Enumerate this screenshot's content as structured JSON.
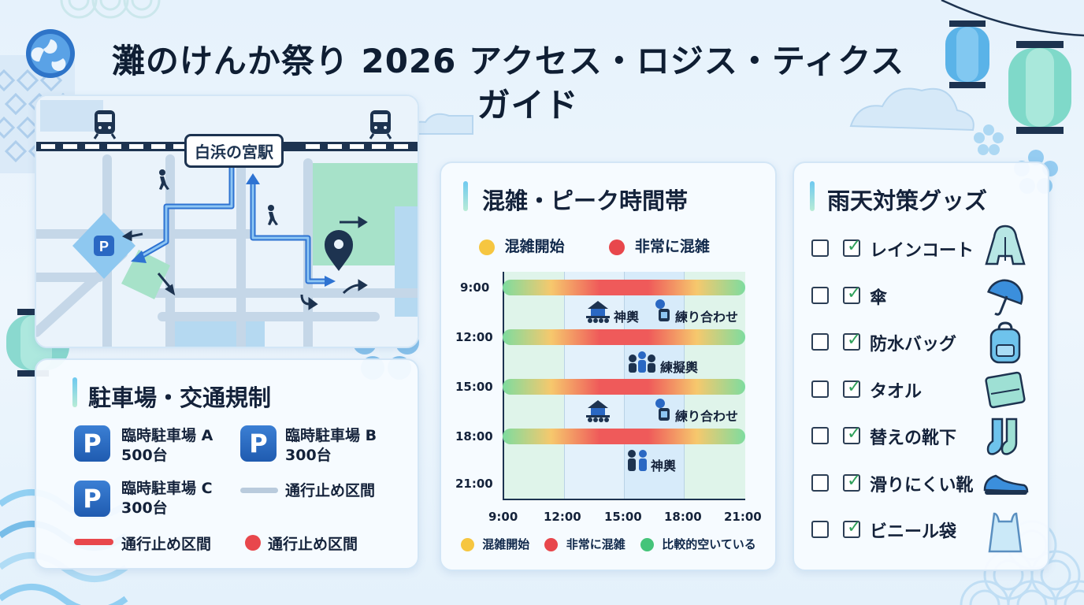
{
  "title": {
    "line1": "灘のけんか祭り 2026 アクセス・ロジス・ティクス",
    "line2": "ガイド"
  },
  "colors": {
    "accent_blue": "#1f5bb0",
    "congestion_start": "#f6c640",
    "very_crowded": "#e8474c",
    "relatively_empty": "#45c47a",
    "road_closure": "#e8474c"
  },
  "map": {
    "station_label": "白浜の宮駅",
    "icons": [
      "train-icon",
      "parking-icon",
      "walking-person-icon",
      "location-pin-icon"
    ]
  },
  "parking": {
    "title": "駐車場・交通規制",
    "lots": [
      {
        "icon": "P",
        "name": "臨時駐車場 A",
        "capacity": "500台"
      },
      {
        "icon": "P",
        "name": "臨時駐車場 B",
        "capacity": "300台"
      },
      {
        "icon": "P",
        "name": "臨時駐車場 C",
        "capacity": "300台"
      }
    ],
    "legend": [
      {
        "label": "通行止め区間",
        "style": "gray-line"
      },
      {
        "label": "通行止め区間",
        "style": "red-line"
      },
      {
        "label": "通行止め区間",
        "style": "red-dot"
      }
    ]
  },
  "congestion": {
    "title": "混雑・ピーク時間帯",
    "top_legend": [
      {
        "label": "混雑開始",
        "color": "#f6c640"
      },
      {
        "label": "非常に混雑",
        "color": "#e8474c"
      }
    ],
    "bottom_legend": [
      {
        "label": "混雑開始",
        "color": "#f6c640"
      },
      {
        "label": "非常に混雑",
        "color": "#e8474c"
      },
      {
        "label": "比較的空いている",
        "color": "#45c47a"
      }
    ]
  },
  "chart_data": {
    "type": "other",
    "x_ticks": [
      "9:00",
      "12:00",
      "15:00",
      "18:00",
      "21:00"
    ],
    "y_ticks": [
      "9:00",
      "12:00",
      "15:00",
      "18:00",
      "21:00"
    ],
    "bands": [
      {
        "row": "9:00",
        "gradient": [
          "relatively_empty",
          "congestion_start",
          "very_crowded",
          "very_crowded",
          "congestion_start",
          "relatively_empty"
        ]
      },
      {
        "row": "12:00",
        "gradient": [
          "relatively_empty",
          "congestion_start",
          "very_crowded",
          "very_crowded",
          "congestion_start",
          "relatively_empty"
        ]
      },
      {
        "row": "15:00",
        "gradient": [
          "relatively_empty",
          "congestion_start",
          "very_crowded",
          "very_crowded",
          "congestion_start",
          "relatively_empty"
        ]
      },
      {
        "row": "18:00",
        "gradient": [
          "relatively_empty",
          "congestion_start",
          "very_crowded",
          "very_crowded",
          "congestion_start",
          "relatively_empty"
        ]
      }
    ],
    "events": [
      {
        "label": "神輿",
        "icon": "mikoshi-icon",
        "x": "12:00-15:00",
        "between": "9:00-12:00"
      },
      {
        "label": "練り合わせ",
        "icon": "banner-icon",
        "x": "15:00-18:00",
        "between": "9:00-12:00"
      },
      {
        "label": "練擬輿",
        "icon": "crowd-icon",
        "x": "15:00-18:00",
        "between": "12:00-15:00"
      },
      {
        "label": "",
        "icon": "mikoshi-icon",
        "x": "12:00-15:00",
        "between": "15:00-18:00"
      },
      {
        "label": "練り合わせ",
        "icon": "banner-icon",
        "x": "15:00-18:00",
        "between": "15:00-18:00"
      },
      {
        "label": "神輿",
        "icon": "people-icon",
        "x": "15:00-18:00",
        "between": "18:00-21:00"
      }
    ]
  },
  "rain": {
    "title": "雨天対策グッズ",
    "items": [
      {
        "label": "レインコート",
        "icon": "raincoat-icon",
        "checked": true
      },
      {
        "label": "傘",
        "icon": "umbrella-icon",
        "checked": true
      },
      {
        "label": "防水バッグ",
        "icon": "backpack-icon",
        "checked": true
      },
      {
        "label": "タオル",
        "icon": "towel-icon",
        "checked": true
      },
      {
        "label": "替えの靴下",
        "icon": "socks-icon",
        "checked": true
      },
      {
        "label": "滑りにくい靴",
        "icon": "shoe-icon",
        "checked": true
      },
      {
        "label": "ビニール袋",
        "icon": "plastic-bag-icon",
        "checked": true
      }
    ]
  }
}
